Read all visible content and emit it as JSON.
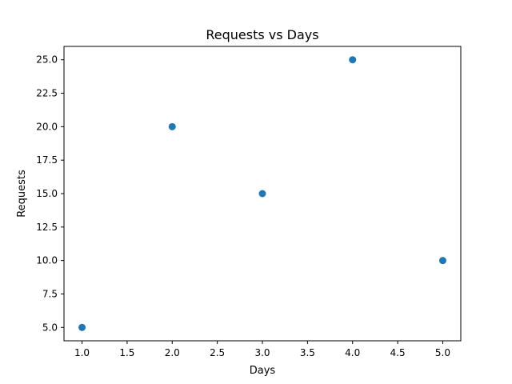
{
  "chart_data": {
    "type": "scatter",
    "title": "Requests vs Days",
    "xlabel": "Days",
    "ylabel": "Requests",
    "xlim": [
      0.8,
      5.2
    ],
    "ylim": [
      4.0,
      26.0
    ],
    "xticks": [
      1.0,
      1.5,
      2.0,
      2.5,
      3.0,
      3.5,
      4.0,
      4.5,
      5.0
    ],
    "yticks": [
      5.0,
      7.5,
      10.0,
      12.5,
      15.0,
      17.5,
      20.0,
      22.5,
      25.0
    ],
    "xtick_labels": [
      "1.0",
      "1.5",
      "2.0",
      "2.5",
      "3.0",
      "3.5",
      "4.0",
      "4.5",
      "5.0"
    ],
    "ytick_labels": [
      "5.0",
      "7.5",
      "10.0",
      "12.5",
      "15.0",
      "17.5",
      "20.0",
      "22.5",
      "25.0"
    ],
    "series": [
      {
        "x": [
          1,
          2,
          3,
          4,
          5
        ],
        "y": [
          5,
          20,
          15,
          25,
          10
        ],
        "color": "#1f77b4"
      }
    ],
    "grid": false
  }
}
